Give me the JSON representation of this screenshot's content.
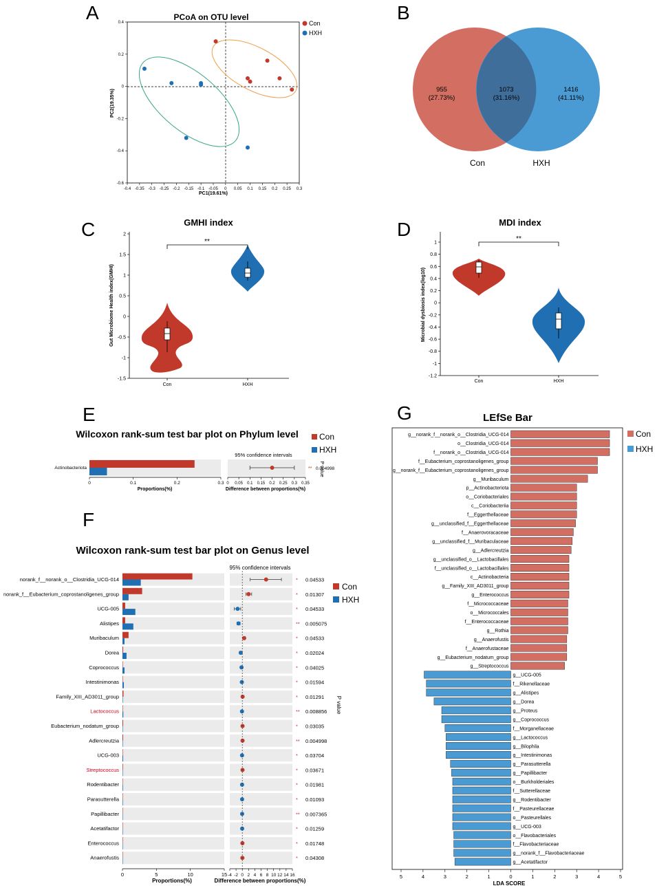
{
  "colors": {
    "con": "#c0392b",
    "hxh": "#1f6fb2",
    "con_light": "#d9695b",
    "hxh_light": "#3d8fd1",
    "lefse_con": "#d36f62",
    "lefse_hxh": "#4a9ad3",
    "ellipse_con": "#f0a04b",
    "ellipse_hxh": "#3aa58a",
    "grey": "#ebebeb"
  },
  "panels": {
    "A": "A",
    "B": "B",
    "C": "C",
    "D": "D",
    "E": "E",
    "F": "F",
    "G": "G"
  },
  "pcoa": {
    "title": "PCoA on OTU level",
    "xlabel": "PC1(19.61%)",
    "ylabel": "PC2(19.35%)",
    "legend": [
      "Con",
      "HXH"
    ],
    "xticks": [
      "-0.4",
      "-0.35",
      "-0.3",
      "-0.25",
      "-0.2",
      "-0.15",
      "-0.1",
      "-0.05",
      "0",
      "0.05",
      "0.1",
      "0.15",
      "0.2",
      "0.25",
      "0.3"
    ],
    "yticks": [
      "0.4",
      "0.2",
      "0",
      "-0.2",
      "-0.4",
      "-0.6"
    ],
    "con_points": [
      [
        -0.04,
        0.28
      ],
      [
        0.09,
        0.05
      ],
      [
        0.1,
        0.03
      ],
      [
        0.17,
        0.16
      ],
      [
        0.22,
        0.05
      ],
      [
        0.27,
        -0.02
      ]
    ],
    "hxh_points": [
      [
        -0.33,
        0.11
      ],
      [
        -0.22,
        0.02
      ],
      [
        -0.1,
        0.02
      ],
      [
        -0.1,
        0.01
      ],
      [
        -0.16,
        -0.32
      ],
      [
        0.09,
        -0.38
      ]
    ]
  },
  "venn": {
    "con_only": "955",
    "con_only_pct": "(27.73%)",
    "shared": "1073",
    "shared_pct": "(31.16%)",
    "hxh_only": "1416",
    "hxh_only_pct": "(41.11%)",
    "label_con": "Con",
    "label_hxh": "HXH"
  },
  "gmhi": {
    "title": "GMHI index",
    "ylabel": "Gut Microbiome Health index(GMHI)",
    "yticks": [
      "2",
      "1.5",
      "1",
      "0.5",
      "0",
      "-0.5",
      "-1",
      "-1.5"
    ],
    "groups": [
      "Con",
      "HXH"
    ],
    "sig": "**"
  },
  "mdi": {
    "title": "MDI index",
    "ylabel": "Microbial dysbiosis index(log10)",
    "yticks": [
      "1",
      "0.8",
      "0.6",
      "0.4",
      "0.2",
      "0",
      "-0.2",
      "-0.4",
      "-0.6",
      "-0.8",
      "-1",
      "-1.2"
    ],
    "groups": [
      "Con",
      "HXH"
    ],
    "sig": "**"
  },
  "phylum": {
    "title": "Wilcoxon rank-sum test bar plot on Phylum level",
    "ci_title": "95% confidence intervals",
    "xlabel": "Proportions(%)",
    "dlabel": "Difference between proportions(%)",
    "pvalue_label": "P value",
    "legend": [
      "Con",
      "HXH"
    ],
    "xticks": [
      "0",
      "0.1",
      "0.2",
      "0.3"
    ],
    "dticks": [
      "0",
      "0.05",
      "0.1",
      "0.15",
      "0.2",
      "0.25",
      "0.3",
      "0.35"
    ],
    "rows": [
      {
        "name": "Actinobacteriota",
        "con": 0.24,
        "hxh": 0.04,
        "diff": 0.2,
        "lo": 0.1,
        "hi": 0.3,
        "stars": "**",
        "p": "0.004998"
      }
    ]
  },
  "genus": {
    "title": "Wilcoxon rank-sum test bar plot on Genus level",
    "ci_title": "95% confidence intervals",
    "xlabel": "Proportions(%)",
    "dlabel": "Difference between proportions(%)",
    "pvalue_label": "P value",
    "legend": [
      "Con",
      "HXH"
    ],
    "xticks": [
      "0",
      "5",
      "10",
      "15"
    ],
    "dticks": [
      "-4",
      "-2",
      "0",
      "2",
      "4",
      "6",
      "8",
      "10",
      "12",
      "14",
      "16"
    ],
    "rows": [
      {
        "name": "norank_f__norank_o__Clostridia_UCG-014",
        "con": 10.3,
        "hxh": 2.7,
        "diff": 7.6,
        "lo": 2.5,
        "hi": 12.5,
        "stars": "*",
        "p": "0.04533",
        "red": false
      },
      {
        "name": "norank_f__Eubacterium_coprostanoligenes_group",
        "con": 2.9,
        "hxh": 0.9,
        "diff": 2.0,
        "lo": 1.2,
        "hi": 3.0,
        "stars": "*",
        "p": "0.01307",
        "red": false
      },
      {
        "name": "UCG-005",
        "con": 0.4,
        "hxh": 1.9,
        "diff": -1.5,
        "lo": -2.6,
        "hi": -0.5,
        "stars": "*",
        "p": "0.04533",
        "red": false
      },
      {
        "name": "Alistipes",
        "con": 0.4,
        "hxh": 1.6,
        "diff": -1.2,
        "lo": -1.7,
        "hi": -0.7,
        "stars": "**",
        "p": "0.005075",
        "red": false
      },
      {
        "name": "Muribaculum",
        "con": 0.9,
        "hxh": 0.3,
        "diff": 0.6,
        "lo": 0.2,
        "hi": 1.0,
        "stars": "*",
        "p": "0.04533",
        "red": false
      },
      {
        "name": "Dorea",
        "con": 0.1,
        "hxh": 0.6,
        "diff": -0.5,
        "lo": -0.9,
        "hi": -0.1,
        "stars": "*",
        "p": "0.02024",
        "red": false
      },
      {
        "name": "Coprococcus",
        "con": 0.05,
        "hxh": 0.3,
        "diff": -0.25,
        "lo": -0.5,
        "hi": 0.0,
        "stars": "*",
        "p": "0.04025",
        "red": false
      },
      {
        "name": "Intestinimonas",
        "con": 0.03,
        "hxh": 0.2,
        "diff": -0.15,
        "lo": -0.3,
        "hi": 0.0,
        "stars": "*",
        "p": "0.01594",
        "red": false
      },
      {
        "name": "Family_XIII_AD3011_group",
        "con": 0.15,
        "hxh": 0.05,
        "diff": 0.1,
        "lo": 0.03,
        "hi": 0.2,
        "stars": "*",
        "p": "0.01291",
        "red": false
      },
      {
        "name": "Lactococcus",
        "con": 0.02,
        "hxh": 0.12,
        "diff": -0.1,
        "lo": -0.16,
        "hi": -0.04,
        "stars": "**",
        "p": "0.008856",
        "red": true
      },
      {
        "name": "Eubacterium_nodatum_group",
        "con": 0.1,
        "hxh": 0.02,
        "diff": 0.08,
        "lo": 0.03,
        "hi": 0.14,
        "stars": "*",
        "p": "0.03035",
        "red": false
      },
      {
        "name": "Adlercreutzia",
        "con": 0.1,
        "hxh": 0.02,
        "diff": 0.08,
        "lo": 0.03,
        "hi": 0.13,
        "stars": "**",
        "p": "0.004998",
        "red": false
      },
      {
        "name": "UCG-003",
        "con": 0.02,
        "hxh": 0.1,
        "diff": -0.08,
        "lo": -0.14,
        "hi": -0.02,
        "stars": "*",
        "p": "0.03704",
        "red": false
      },
      {
        "name": "Streptococcus",
        "con": 0.08,
        "hxh": 0.01,
        "diff": 0.07,
        "lo": 0.02,
        "hi": 0.12,
        "stars": "*",
        "p": "0.03671",
        "red": true
      },
      {
        "name": "Rodentibacter",
        "con": 0.01,
        "hxh": 0.08,
        "diff": -0.07,
        "lo": -0.12,
        "hi": -0.02,
        "stars": "*",
        "p": "0.01981",
        "red": false
      },
      {
        "name": "Parasutterella",
        "con": 0.01,
        "hxh": 0.07,
        "diff": -0.06,
        "lo": -0.1,
        "hi": -0.02,
        "stars": "*",
        "p": "0.01093",
        "red": false
      },
      {
        "name": "Papillibacter",
        "con": 0.01,
        "hxh": 0.06,
        "diff": -0.05,
        "lo": -0.09,
        "hi": -0.02,
        "stars": "**",
        "p": "0.007365",
        "red": false
      },
      {
        "name": "Acetatifactor",
        "con": 0.01,
        "hxh": 0.05,
        "diff": -0.04,
        "lo": -0.07,
        "hi": -0.01,
        "stars": "*",
        "p": "0.01259",
        "red": false
      },
      {
        "name": "Enterococcus",
        "con": 0.05,
        "hxh": 0.01,
        "diff": 0.04,
        "lo": 0.01,
        "hi": 0.07,
        "stars": "*",
        "p": "0.01748",
        "red": false
      },
      {
        "name": "Anaerofustis",
        "con": 0.04,
        "hxh": 0.01,
        "diff": 0.03,
        "lo": 0.01,
        "hi": 0.05,
        "stars": "*",
        "p": "0.04308",
        "red": false
      }
    ]
  },
  "lefse": {
    "title": "LEfSe Bar",
    "xlabel": "LDA SCORE",
    "legend": [
      "Con",
      "HXH"
    ],
    "xticks": [
      "5",
      "4",
      "3",
      "2",
      "1",
      "0",
      "1",
      "2",
      "3",
      "4",
      "5"
    ],
    "con": [
      {
        "name": "g__norank_f__norank_o__Clostridia_UCG-014",
        "v": 4.5
      },
      {
        "name": "o__Clostridia_UCG-014",
        "v": 4.5
      },
      {
        "name": "f__norank_o__Clostridia_UCG-014",
        "v": 4.5
      },
      {
        "name": "f__Eubacterium_coprostanoligenes_group",
        "v": 3.95
      },
      {
        "name": "g__norank_f__Eubacterium_coprostanoligenes_group",
        "v": 3.95
      },
      {
        "name": "g__Muribaculum",
        "v": 3.5
      },
      {
        "name": "p__Actinobacteriota",
        "v": 3.0
      },
      {
        "name": "o__Coriobacteriales",
        "v": 3.0
      },
      {
        "name": "c__Coriobacteriia",
        "v": 3.0
      },
      {
        "name": "f__Eggerthellaceae",
        "v": 3.0
      },
      {
        "name": "g__unclassified_f__Eggerthellaceae",
        "v": 2.95
      },
      {
        "name": "f__Anaerovoracaceae",
        "v": 2.85
      },
      {
        "name": "g__unclassified_f__Muribaculaceae",
        "v": 2.8
      },
      {
        "name": "g__Adlercreutzia",
        "v": 2.75
      },
      {
        "name": "g__unclassified_o__Lactobacillales",
        "v": 2.65
      },
      {
        "name": "f__unclassified_o__Lactobacillales",
        "v": 2.65
      },
      {
        "name": "c__Actinobacteria",
        "v": 2.65
      },
      {
        "name": "g__Family_XIII_AD3011_group",
        "v": 2.65
      },
      {
        "name": "g__Enterococcus",
        "v": 2.65
      },
      {
        "name": "f__Micrococcaceae",
        "v": 2.6
      },
      {
        "name": "o__Micrococcales",
        "v": 2.6
      },
      {
        "name": "f__Enterococcaceae",
        "v": 2.6
      },
      {
        "name": "g__Rothia",
        "v": 2.6
      },
      {
        "name": "g__Anaerofustis",
        "v": 2.55
      },
      {
        "name": "f__Anaerofustaceae",
        "v": 2.55
      },
      {
        "name": "g__Eubacterium_nodatum_group",
        "v": 2.55
      },
      {
        "name": "g__Streptococcus",
        "v": 2.45
      }
    ],
    "hxh": [
      {
        "name": "g__UCG-005",
        "v": -3.95
      },
      {
        "name": "f__Rikenellaceae",
        "v": -3.85
      },
      {
        "name": "g__Alistipes",
        "v": -3.85
      },
      {
        "name": "g__Dorea",
        "v": -3.5
      },
      {
        "name": "g__Proteus",
        "v": -3.15
      },
      {
        "name": "g__Coprococcus",
        "v": -3.15
      },
      {
        "name": "f__Morganellaceae",
        "v": -3.0
      },
      {
        "name": "g__Lactococcus",
        "v": -2.95
      },
      {
        "name": "g__Bilophila",
        "v": -2.95
      },
      {
        "name": "g__Intestinimonas",
        "v": -2.95
      },
      {
        "name": "g__Parasutterella",
        "v": -2.75
      },
      {
        "name": "g__Papillibacter",
        "v": -2.7
      },
      {
        "name": "o__Burkholderiales",
        "v": -2.65
      },
      {
        "name": "f__Sutterellaceae",
        "v": -2.65
      },
      {
        "name": "g__Rodentibacter",
        "v": -2.65
      },
      {
        "name": "f__Pasteurellaceae",
        "v": -2.65
      },
      {
        "name": "o__Pasteurellales",
        "v": -2.65
      },
      {
        "name": "g__UCG-003",
        "v": -2.65
      },
      {
        "name": "o__Flavobacteriales",
        "v": -2.6
      },
      {
        "name": "f__Flavobacteriaceae",
        "v": -2.6
      },
      {
        "name": "g__norank_f__Flavobacteriaceae",
        "v": -2.6
      },
      {
        "name": "g__Acetatifactor",
        "v": -2.55
      }
    ]
  },
  "chart_data": [
    {
      "type": "scatter",
      "title": "PCoA on OTU level",
      "xlabel": "PC1(19.61%)",
      "ylabel": "PC2(19.35%)",
      "xlim": [
        -0.4,
        0.3
      ],
      "ylim": [
        -0.6,
        0.4
      ],
      "series": [
        {
          "name": "Con"
        },
        {
          "name": "HXH"
        }
      ]
    },
    {
      "type": "venn",
      "sets": [
        "Con",
        "HXH"
      ],
      "values": [
        955,
        1073,
        1416
      ]
    },
    {
      "type": "violin",
      "title": "GMHI index",
      "ylim": [
        -1.5,
        2
      ],
      "categories": [
        "Con",
        "HXH"
      ]
    },
    {
      "type": "violin",
      "title": "MDI index",
      "ylim": [
        -1.2,
        1
      ],
      "categories": [
        "Con",
        "HXH"
      ]
    },
    {
      "type": "bar",
      "title": "Wilcoxon rank-sum test bar plot on Phylum level"
    },
    {
      "type": "bar",
      "title": "Wilcoxon rank-sum test bar plot on Genus level"
    },
    {
      "type": "bar",
      "title": "LEfSe Bar",
      "xlabel": "LDA SCORE",
      "xlim": [
        -5,
        5
      ]
    }
  ]
}
